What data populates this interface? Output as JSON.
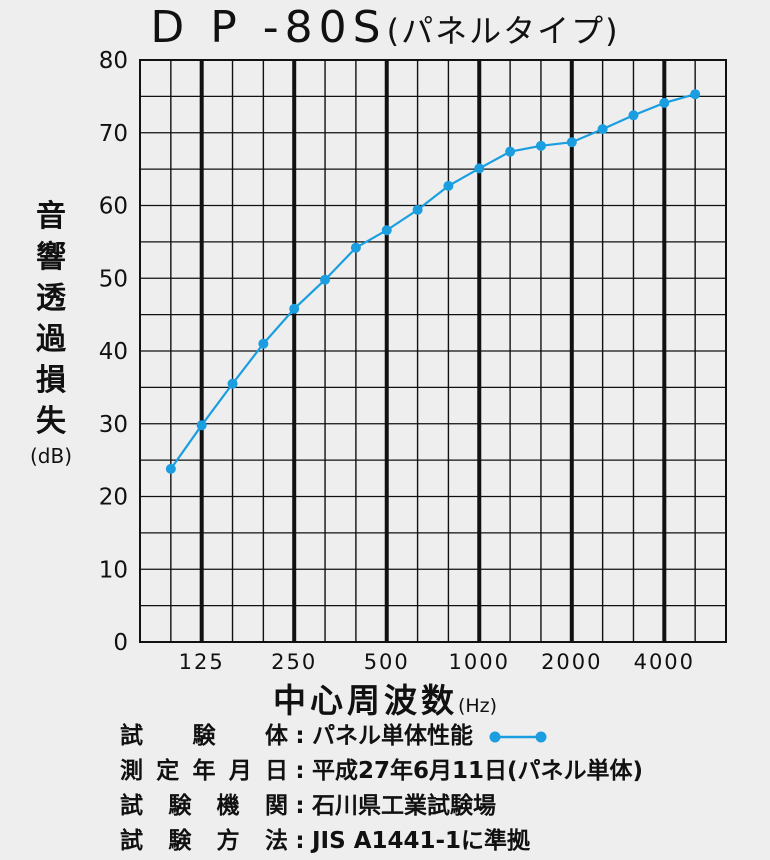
{
  "title": {
    "main": "D P -80S",
    "sub": "(パネルタイプ)"
  },
  "ylabel": {
    "glyphs": [
      "音",
      "響",
      "透",
      "過",
      "損",
      "失"
    ],
    "unit": "(dB)"
  },
  "xlabel": {
    "main": "中心周波数",
    "unit": "(Hz)"
  },
  "notes": [
    {
      "key": "試験体",
      "sep": ":",
      "value": "パネル単体性能",
      "legend": true
    },
    {
      "key": "測定年月日",
      "sep": ":",
      "value": "平成27年6月11日(パネル単体)"
    },
    {
      "key": "試験機関",
      "sep": ":",
      "value": "石川県工業試験場"
    },
    {
      "key": "試験方法",
      "sep": ":",
      "value": "JIS A1441-1に準拠"
    }
  ],
  "colors": {
    "series": "#1a9ee0",
    "grid": "#111111",
    "background": "#eeeeee"
  },
  "chart_data": {
    "type": "line",
    "title": "D P -80S(パネルタイプ)",
    "xlabel": "中心周波数(Hz)",
    "ylabel": "音響透過損失(dB)",
    "x": [
      100,
      125,
      160,
      200,
      250,
      315,
      400,
      500,
      630,
      800,
      1000,
      1250,
      1600,
      2000,
      2500,
      3150,
      4000,
      5000
    ],
    "x_tick_labels": [
      "125",
      "250",
      "500",
      "1000",
      "2000",
      "4000"
    ],
    "y_ticks": [
      0,
      10,
      20,
      30,
      40,
      50,
      60,
      70,
      80
    ],
    "ylim": [
      0,
      80
    ],
    "grid": true,
    "x_scale": "log (1/3 octave bands)",
    "series": [
      {
        "name": "パネル単体性能",
        "values": [
          23.8,
          29.8,
          35.5,
          41.0,
          45.8,
          49.8,
          54.2,
          56.6,
          59.4,
          62.7,
          65.1,
          67.4,
          68.2,
          68.7,
          70.5,
          72.4,
          74.1,
          75.3
        ]
      }
    ]
  }
}
